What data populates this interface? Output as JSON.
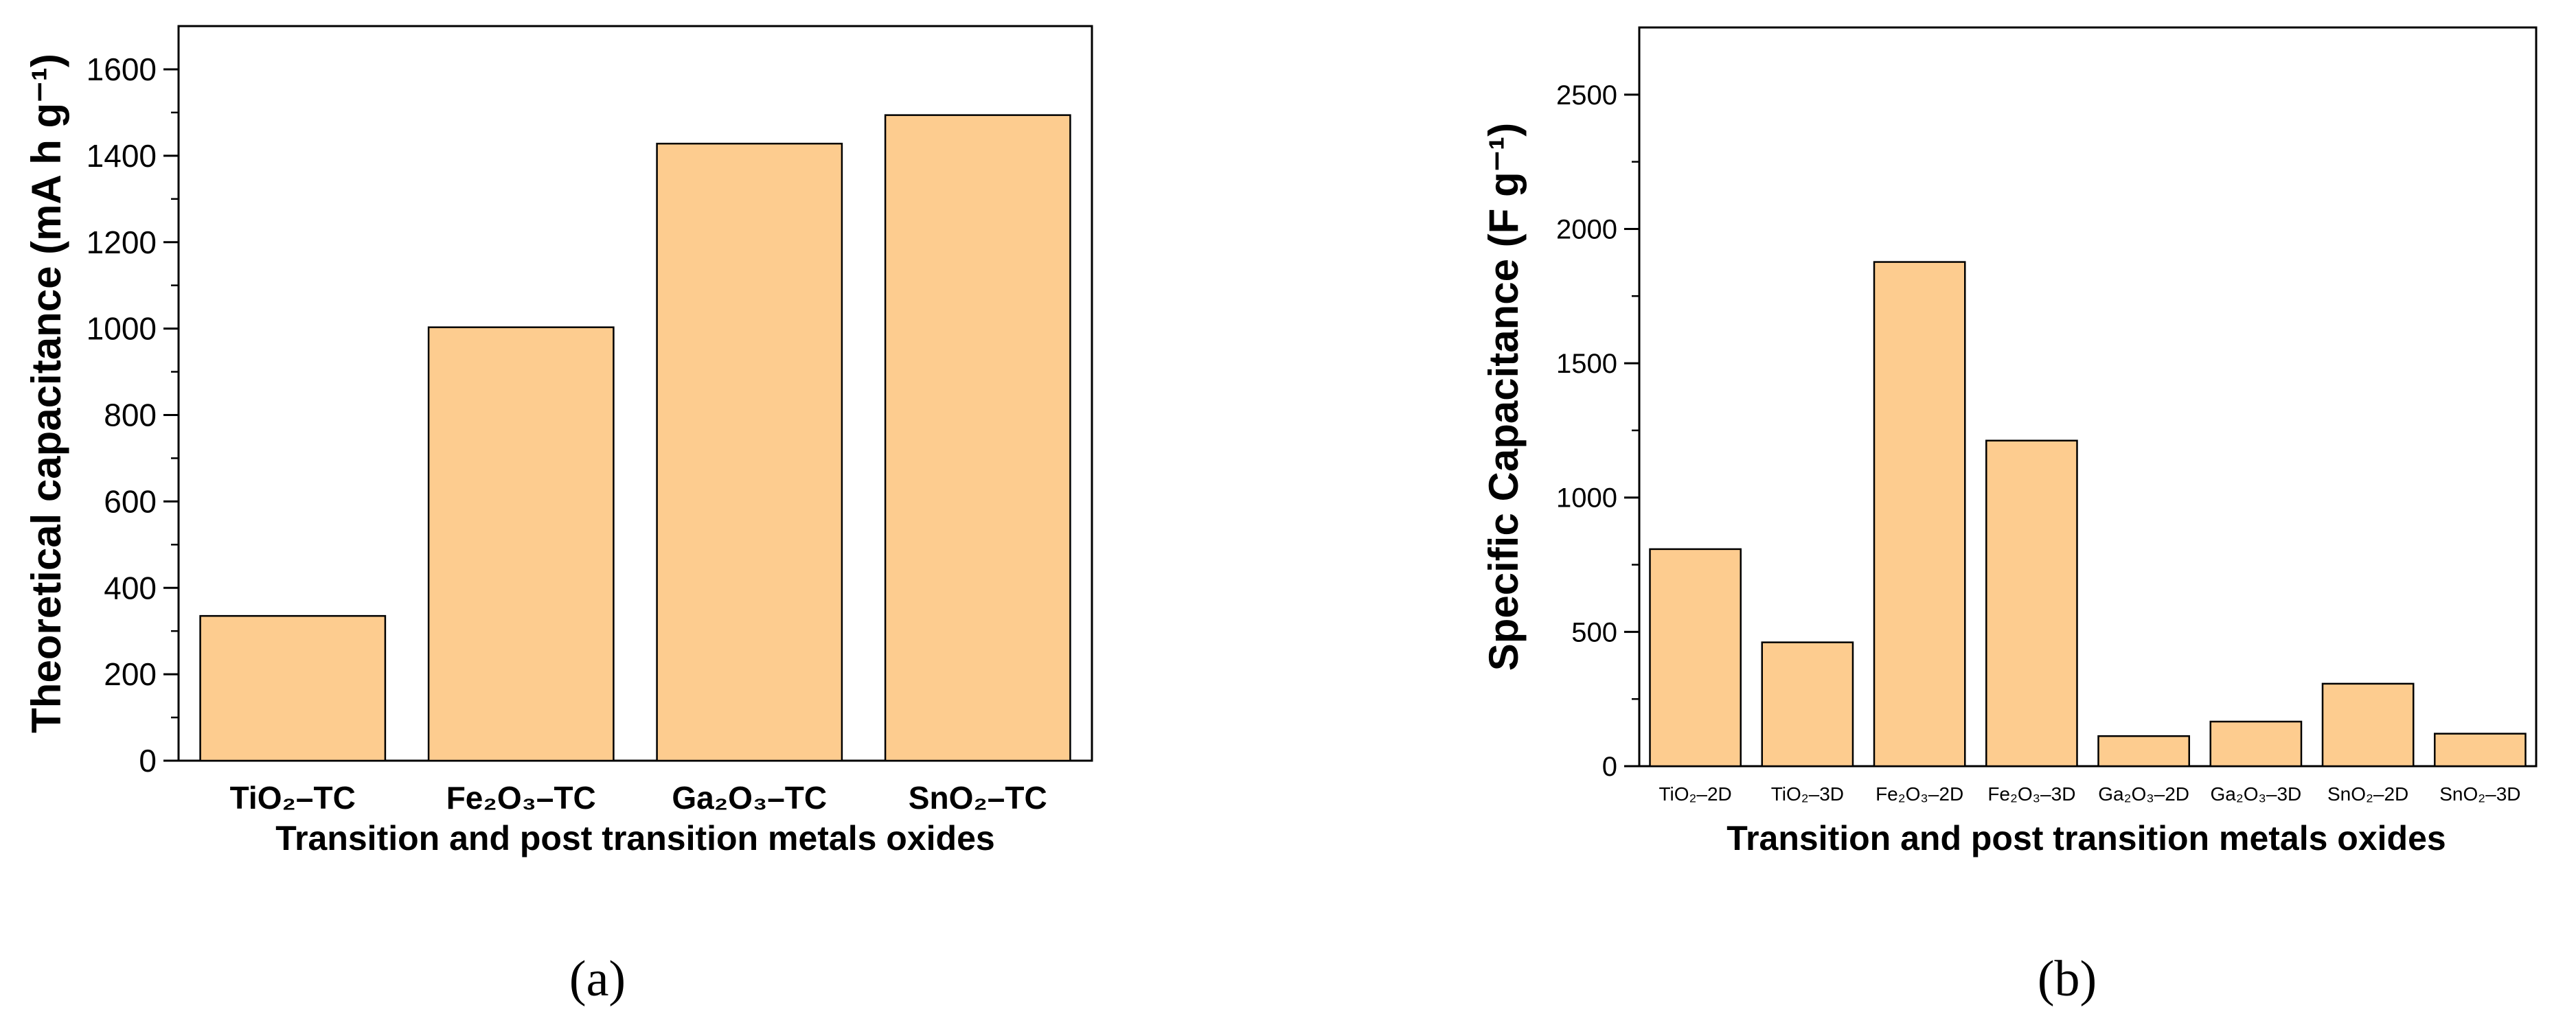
{
  "chart_data": [
    {
      "type": "bar",
      "panel_label": "(a)",
      "categories": [
        "TiO₂–TC",
        "Fe₂O₃–TC",
        "Ga₂O₃–TC",
        "SnO₂–TC"
      ],
      "values": [
        335,
        1003,
        1428,
        1494
      ],
      "xlabel": "Transition and post transition metals oxides",
      "ylabel": "Theoretical capacitance (mA h g⁻¹)",
      "ylim": [
        0,
        1700
      ],
      "yticks": [
        0,
        200,
        400,
        600,
        800,
        1000,
        1200,
        1400,
        1600
      ],
      "bar_color": "#fdcc8f",
      "grid": false
    },
    {
      "type": "bar",
      "panel_label": "(b)",
      "categories": [
        "TiO₂–2D",
        "TiO₂–3D",
        "Fe₂O₃–2D",
        "Fe₂O₃–3D",
        "Ga₂O₃–2D",
        "Ga₂O₃–3D",
        "SnO₂–2D",
        "SnO₂–3D"
      ],
      "values": [
        808,
        461,
        1877,
        1212,
        112,
        166,
        307,
        121
      ],
      "xlabel": "Transition and post transition metals oxides",
      "ylabel": "Specific Capacitance (F g⁻¹)",
      "ylim": [
        0,
        2750
      ],
      "yticks": [
        0,
        500,
        1000,
        1500,
        2000,
        2500
      ],
      "bar_color": "#fdcc8f",
      "grid": false
    }
  ]
}
